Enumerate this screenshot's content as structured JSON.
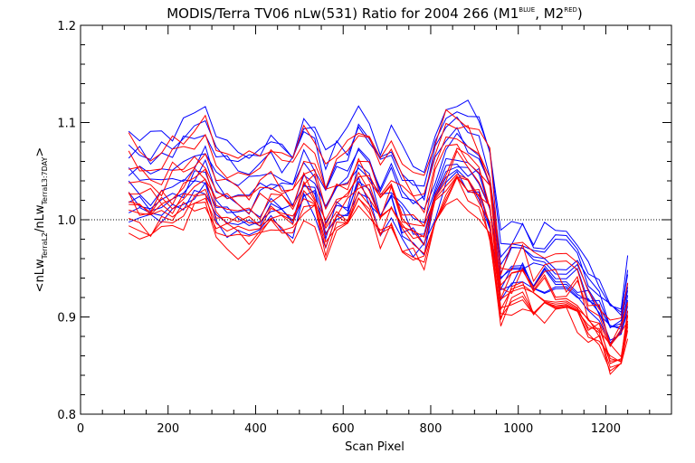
{
  "chart_data": {
    "type": "line",
    "title_main": "MODIS/Terra TV06 nLw(531) Ratio for 2004 266 (M1",
    "title_sup1": "BLUE",
    "title_mid": ", M2",
    "title_sup2": "RED",
    "title_end": ")",
    "xlabel": "Scan Pixel",
    "ylabel_parts": [
      "<nLw",
      "TerraL2",
      "/nLw",
      "TerraL3:7DAY",
      ">"
    ],
    "xlim": [
      0,
      1350
    ],
    "ylim": [
      0.8,
      1.2
    ],
    "x_ticks": [
      0,
      200,
      400,
      600,
      800,
      1000,
      1200
    ],
    "y_ticks": [
      "0.8",
      "0.9",
      "1.0",
      "1.1",
      "1.2"
    ],
    "y_tick_values": [
      0.8,
      0.9,
      1.0,
      1.1,
      1.2
    ],
    "reference_line": 1.0,
    "grid": false,
    "colors": {
      "M1": "#0000ff",
      "M2": "#ff0000",
      "axis": "#000000"
    },
    "x": [
      110,
      135,
      160,
      185,
      210,
      235,
      260,
      285,
      310,
      335,
      360,
      385,
      410,
      435,
      460,
      485,
      510,
      535,
      560,
      585,
      610,
      635,
      660,
      685,
      710,
      735,
      760,
      785,
      810,
      835,
      860,
      885,
      910,
      935,
      960,
      985,
      1010,
      1035,
      1060,
      1085,
      1110,
      1135,
      1160,
      1185,
      1210,
      1235,
      1250
    ],
    "base_profile": [
      1.035,
      1.03,
      1.025,
      1.03,
      1.035,
      1.04,
      1.05,
      1.055,
      1.03,
      1.02,
      1.01,
      1.015,
      1.02,
      1.03,
      1.025,
      1.02,
      1.05,
      1.04,
      1.005,
      1.03,
      1.03,
      1.055,
      1.045,
      1.02,
      1.035,
      1.01,
      1.0,
      0.995,
      1.035,
      1.06,
      1.07,
      1.06,
      1.05,
      1.02,
      0.93,
      0.945,
      0.95,
      0.935,
      0.94,
      0.935,
      0.935,
      0.93,
      0.91,
      0.9,
      0.875,
      0.88,
      0.915
    ],
    "series": [
      {
        "group": "M1",
        "offset": 0.055,
        "noise": 0.012,
        "seed": 1
      },
      {
        "group": "M1",
        "offset": 0.045,
        "noise": 0.012,
        "seed": 2
      },
      {
        "group": "M1",
        "offset": 0.035,
        "noise": 0.012,
        "seed": 3
      },
      {
        "group": "M1",
        "offset": 0.02,
        "noise": 0.011,
        "seed": 4
      },
      {
        "group": "M1",
        "offset": 0.01,
        "noise": 0.011,
        "seed": 5
      },
      {
        "group": "M1",
        "offset": 0.0,
        "noise": 0.011,
        "seed": 6
      },
      {
        "group": "M1",
        "offset": -0.008,
        "noise": 0.011,
        "seed": 7
      },
      {
        "group": "M1",
        "offset": -0.015,
        "noise": 0.011,
        "seed": 8
      },
      {
        "group": "M1",
        "offset": -0.022,
        "noise": 0.011,
        "seed": 9
      },
      {
        "group": "M1",
        "offset": -0.028,
        "noise": 0.011,
        "seed": 10
      },
      {
        "group": "M2",
        "offset": 0.045,
        "noise": 0.012,
        "seed": 11
      },
      {
        "group": "M2",
        "offset": 0.03,
        "noise": 0.012,
        "seed": 12
      },
      {
        "group": "M2",
        "offset": 0.015,
        "noise": 0.012,
        "seed": 13
      },
      {
        "group": "M2",
        "offset": 0.005,
        "noise": 0.012,
        "seed": 14
      },
      {
        "group": "M2",
        "offset": -0.003,
        "noise": 0.011,
        "seed": 15
      },
      {
        "group": "M2",
        "offset": -0.01,
        "noise": 0.011,
        "seed": 16
      },
      {
        "group": "M2",
        "offset": -0.016,
        "noise": 0.011,
        "seed": 17
      },
      {
        "group": "M2",
        "offset": -0.022,
        "noise": 0.011,
        "seed": 18
      },
      {
        "group": "M2",
        "offset": -0.027,
        "noise": 0.011,
        "seed": 19
      },
      {
        "group": "M2",
        "offset": -0.032,
        "noise": 0.011,
        "seed": 20
      },
      {
        "group": "M2",
        "offset": -0.036,
        "noise": 0.011,
        "seed": 21
      },
      {
        "group": "M2",
        "offset": -0.04,
        "noise": 0.011,
        "seed": 22
      }
    ]
  }
}
